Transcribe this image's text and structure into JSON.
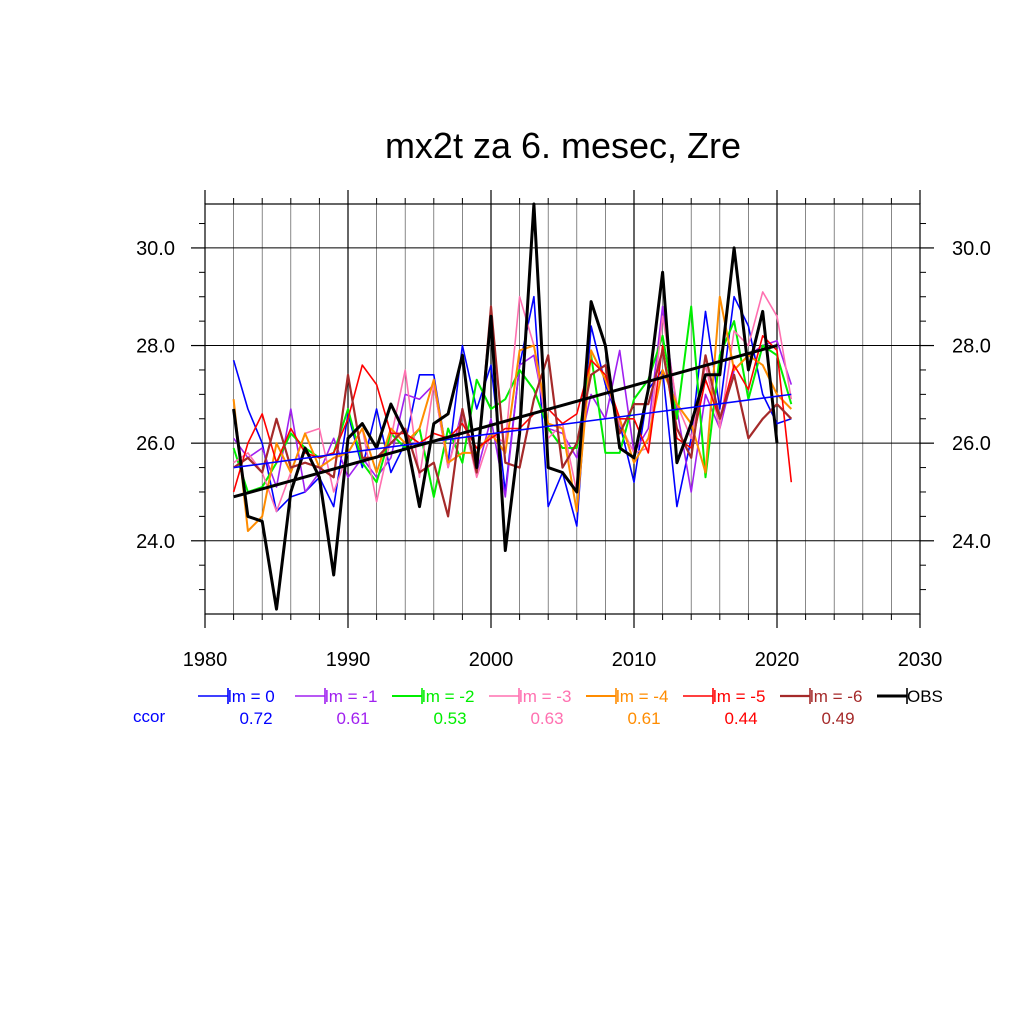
{
  "chart_data": {
    "type": "line",
    "title": "mx2t za 6. mesec, Zre",
    "xlabel": "",
    "ylabel": "",
    "xlim": [
      1980,
      2030
    ],
    "ylim": [
      22.5,
      30.9
    ],
    "xticks": [
      1980,
      1990,
      2000,
      2010,
      2020,
      2030
    ],
    "xtick_labels": [
      "1980",
      "1990",
      "2000",
      "2010",
      "2020",
      "2030"
    ],
    "yticks": [
      24,
      26,
      28,
      30
    ],
    "ytick_labels": [
      "24.0",
      "26.0",
      "28.0",
      "30.0"
    ],
    "grid": true,
    "legend_position": "bottom",
    "ccor_label": "ccor",
    "x": [
      1982,
      1983,
      1984,
      1985,
      1986,
      1987,
      1988,
      1989,
      1990,
      1991,
      1992,
      1993,
      1994,
      1995,
      1996,
      1997,
      1998,
      1999,
      2000,
      2001,
      2002,
      2003,
      2004,
      2005,
      2006,
      2007,
      2008,
      2009,
      2010,
      2011,
      2012,
      2013,
      2014,
      2015,
      2016,
      2017,
      2018,
      2019,
      2020,
      2021
    ],
    "series": [
      {
        "name": "lm = 0",
        "ccor": "0.72",
        "color": "#0000ff",
        "width": 1.6,
        "values": [
          27.7,
          26.7,
          26.0,
          24.6,
          24.9,
          25.0,
          25.3,
          24.7,
          26.6,
          25.5,
          26.7,
          25.4,
          26.0,
          27.4,
          27.4,
          25.6,
          28.0,
          26.7,
          27.6,
          25.0,
          27.6,
          29.0,
          24.7,
          25.4,
          24.3,
          28.4,
          27.2,
          26.4,
          25.2,
          27.1,
          27.5,
          24.7,
          26.1,
          28.7,
          26.7,
          29.0,
          28.4,
          27.0,
          26.4,
          26.5
        ]
      },
      {
        "name": "lm = -1",
        "ccor": "0.61",
        "color": "#a020f0",
        "width": 1.6,
        "values": [
          26.1,
          25.7,
          25.9,
          25.1,
          26.7,
          25.0,
          25.4,
          26.1,
          25.3,
          25.7,
          25.3,
          25.7,
          27.0,
          26.9,
          27.2,
          25.5,
          26.7,
          25.4,
          26.5,
          24.9,
          27.6,
          27.8,
          26.3,
          26.2,
          25.7,
          27.0,
          26.5,
          27.9,
          25.8,
          26.3,
          28.8,
          26.7,
          25.0,
          27.0,
          26.3,
          27.5,
          27.8,
          28.0,
          28.1,
          27.2
        ]
      },
      {
        "name": "lm = -2",
        "ccor": "0.53",
        "color": "#00ee00",
        "width": 2.0,
        "values": [
          25.9,
          25.0,
          25.1,
          25.6,
          26.2,
          25.9,
          25.7,
          25.8,
          26.7,
          25.6,
          25.2,
          26.2,
          25.9,
          26.3,
          24.9,
          26.3,
          25.6,
          27.3,
          26.7,
          26.9,
          27.5,
          27.1,
          26.3,
          25.9,
          25.9,
          27.8,
          25.8,
          25.8,
          26.9,
          27.3,
          28.2,
          26.5,
          28.8,
          25.3,
          27.8,
          28.5,
          26.9,
          28.0,
          27.8,
          26.8
        ]
      },
      {
        "name": "lm = -3",
        "ccor": "0.63",
        "color": "#ff70b0",
        "width": 1.6,
        "values": [
          25.6,
          25.8,
          25.4,
          24.6,
          25.4,
          26.2,
          26.3,
          25.0,
          25.8,
          26.3,
          24.8,
          26.1,
          27.5,
          25.3,
          27.2,
          25.5,
          26.6,
          25.3,
          26.2,
          26.0,
          29.0,
          28.0,
          26.1,
          26.4,
          25.0,
          27.9,
          27.3,
          26.4,
          25.8,
          25.9,
          28.6,
          26.8,
          26.1,
          27.6,
          26.3,
          28.3,
          28.0,
          29.1,
          28.6,
          26.9
        ]
      },
      {
        "name": "lm = -4",
        "ccor": "0.61",
        "color": "#ff8c00",
        "width": 2.0,
        "values": [
          26.9,
          24.2,
          24.5,
          26.0,
          25.4,
          26.2,
          25.5,
          25.7,
          25.8,
          26.3,
          25.4,
          26.3,
          26.0,
          26.3,
          27.3,
          25.6,
          25.8,
          25.8,
          26.2,
          25.8,
          27.9,
          28.0,
          26.4,
          26.3,
          24.6,
          27.9,
          27.3,
          26.5,
          25.6,
          26.1,
          27.5,
          26.8,
          26.4,
          25.4,
          29.0,
          27.5,
          27.8,
          27.6,
          27.0,
          26.7
        ]
      },
      {
        "name": "lm = -5",
        "ccor": "0.44",
        "color": "#ff0000",
        "width": 1.6,
        "values": [
          25.0,
          26.0,
          26.6,
          25.6,
          26.3,
          25.8,
          25.7,
          25.8,
          26.5,
          27.6,
          27.2,
          26.2,
          26.2,
          26.0,
          26.2,
          26.1,
          26.4,
          25.9,
          26.1,
          26.3,
          26.3,
          26.6,
          26.7,
          26.4,
          26.6,
          27.7,
          27.4,
          26.5,
          26.5,
          25.8,
          28.0,
          26.1,
          25.9,
          27.3,
          26.5,
          27.6,
          27.1,
          28.2,
          27.9,
          25.2
        ]
      },
      {
        "name": "lm = -6",
        "ccor": "0.49",
        "color": "#a52a2a",
        "width": 2.2,
        "values": [
          25.5,
          25.7,
          25.4,
          26.5,
          25.5,
          25.6,
          25.5,
          25.3,
          27.4,
          25.7,
          25.7,
          26.0,
          26.3,
          25.4,
          25.6,
          24.5,
          26.7,
          25.4,
          28.8,
          25.6,
          25.5,
          26.9,
          27.8,
          25.5,
          26.0,
          27.4,
          27.6,
          26.2,
          26.8,
          26.8,
          27.9,
          26.3,
          25.7,
          27.8,
          26.5,
          27.4,
          26.1,
          26.5,
          26.8,
          26.5
        ]
      },
      {
        "name": "OBS",
        "ccor": "",
        "color": "#000000",
        "width": 3.0,
        "values": [
          26.7,
          24.5,
          24.4,
          22.6,
          25.0,
          25.9,
          25.3,
          23.3,
          26.1,
          26.4,
          25.9,
          26.8,
          26.2,
          24.7,
          26.4,
          26.6,
          27.8,
          25.5,
          28.6,
          23.8,
          26.2,
          30.9,
          25.5,
          25.4,
          25.0,
          28.9,
          28.0,
          25.9,
          25.7,
          27.1,
          29.5,
          25.6,
          26.4,
          27.4,
          27.4,
          30.0,
          27.5,
          28.7,
          26.0,
          null
        ]
      }
    ],
    "trends": [
      {
        "name": "lm = 0",
        "color": "#0000ff",
        "width": 1.6,
        "x": [
          1982,
          2021
        ],
        "values": [
          25.5,
          27.0
        ]
      },
      {
        "name": "OBS",
        "color": "#000000",
        "width": 3.0,
        "x": [
          1982,
          2020
        ],
        "values": [
          24.9,
          28.0
        ]
      }
    ]
  }
}
